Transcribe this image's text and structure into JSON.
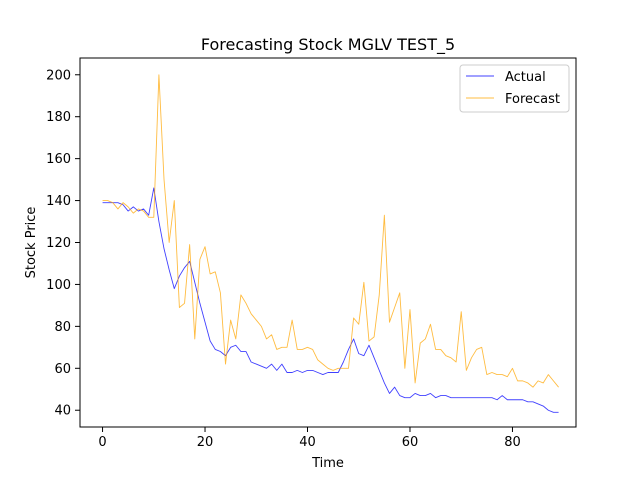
{
  "chart_data": {
    "type": "line",
    "title": "Forecasting Stock MGLV TEST_5",
    "xlabel": "Time",
    "ylabel": "Stock Price",
    "xlim": [
      -4.4,
      92.4
    ],
    "ylim": [
      32,
      208
    ],
    "xticks": [
      0,
      20,
      40,
      60,
      80
    ],
    "yticks": [
      40,
      60,
      80,
      100,
      120,
      140,
      160,
      180,
      200
    ],
    "grid": false,
    "legend_position": "top-right",
    "series": [
      {
        "name": "Actual",
        "color": "#0000ff",
        "values": [
          139,
          139,
          139,
          139,
          138,
          135,
          137,
          135,
          136,
          133,
          146,
          130,
          117,
          107,
          98,
          104,
          108,
          111,
          101,
          91,
          82,
          73,
          69,
          68,
          66,
          70,
          71,
          68,
          68,
          63,
          62,
          61,
          60,
          62,
          59,
          62,
          58,
          58,
          59,
          58,
          59,
          59,
          58,
          57,
          58,
          58,
          58,
          63,
          69,
          74,
          67,
          66,
          71,
          65,
          59,
          53,
          48,
          51,
          47,
          46,
          46,
          48,
          47,
          47,
          48,
          46,
          47,
          47,
          46,
          46,
          46,
          46,
          46,
          46,
          46,
          46,
          46,
          45,
          47,
          45,
          45,
          45,
          45,
          44,
          44,
          43,
          42,
          40,
          39,
          39
        ]
      },
      {
        "name": "Forecast",
        "color": "#ffa500",
        "values": [
          140,
          140,
          139,
          136,
          139,
          137,
          134,
          136,
          135,
          132,
          132,
          200,
          150,
          120,
          140,
          89,
          91,
          119,
          74,
          112,
          118,
          105,
          106,
          96,
          62,
          83,
          74,
          95,
          91,
          86,
          83,
          80,
          74,
          76,
          69,
          70,
          70,
          83,
          69,
          69,
          70,
          69,
          64,
          62,
          60,
          59,
          60,
          60,
          60,
          84,
          81,
          101,
          73,
          75,
          95,
          133,
          82,
          89,
          96,
          60,
          88,
          53,
          72,
          74,
          81,
          69,
          69,
          66,
          65,
          63,
          87,
          59,
          65,
          69,
          70,
          57,
          58,
          57,
          57,
          56,
          60,
          54,
          54,
          53,
          51,
          54,
          53,
          57,
          54,
          51
        ]
      }
    ]
  }
}
